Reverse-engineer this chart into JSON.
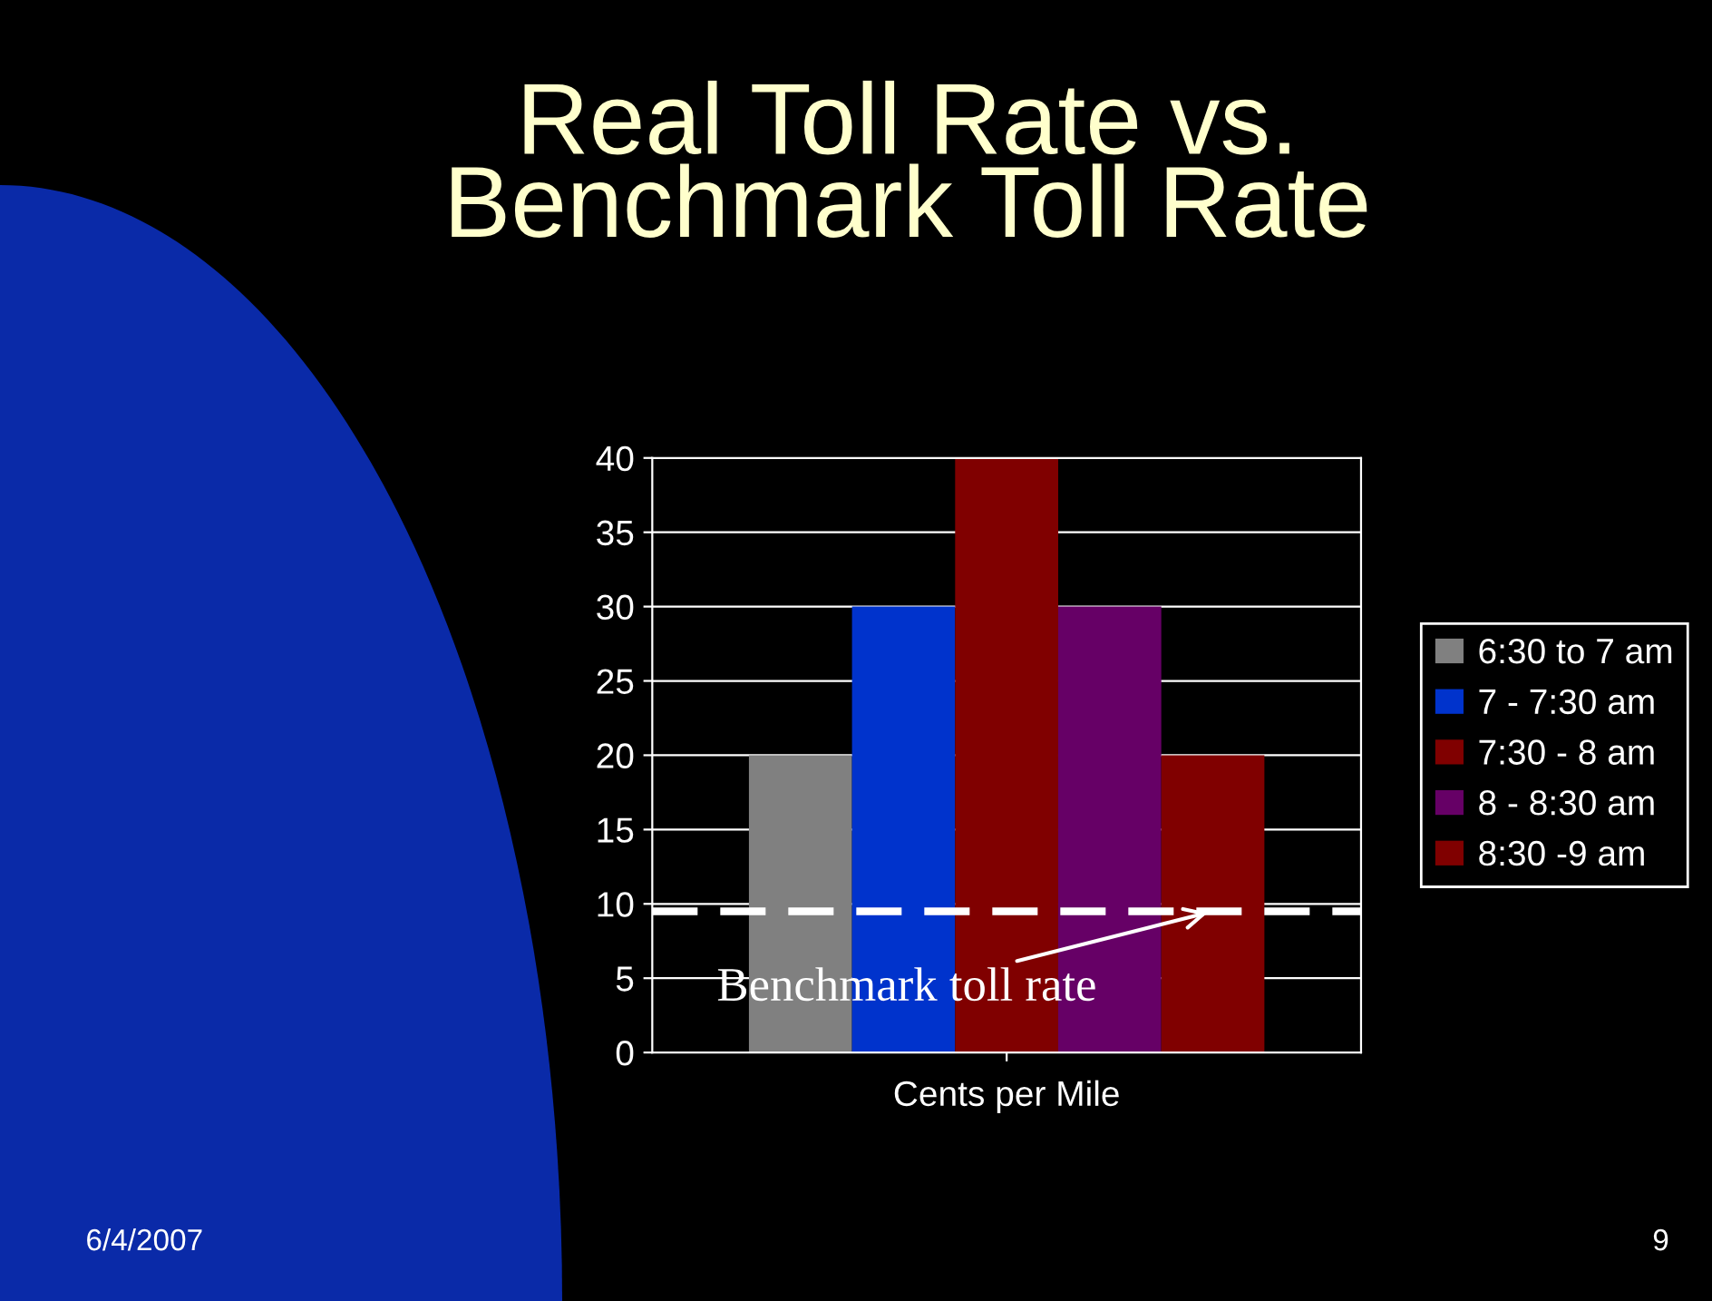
{
  "chart_data": {
    "type": "bar",
    "title": "Real Toll Rate vs.\nBenchmark Toll Rate",
    "xlabel": "Cents per Mile",
    "categories": [
      null
    ],
    "series": [
      {
        "name": "6:30 to 7 am",
        "color": "#808080",
        "values": [
          20
        ]
      },
      {
        "name": "7 - 7:30 am",
        "color": "#0033cc",
        "values": [
          30
        ]
      },
      {
        "name": "7:30 - 8 am",
        "color": "#800000",
        "values": [
          40
        ]
      },
      {
        "name": "8 - 8:30 am",
        "color": "#660066",
        "values": [
          30
        ]
      },
      {
        "name": "8:30 -9 am",
        "color": "#800000",
        "values": [
          20
        ]
      }
    ],
    "ylim": [
      0,
      40
    ],
    "yticks": [
      0,
      5,
      10,
      15,
      20,
      25,
      30,
      35,
      40
    ],
    "grid": "y",
    "legend": "right",
    "ref_lines": [
      {
        "axis": "y",
        "value": 9.5,
        "label": "Benchmark toll rate",
        "color": "#ffffff",
        "line_style": "dashed"
      }
    ],
    "annotations": [
      "6/4/2007",
      "9"
    ]
  }
}
